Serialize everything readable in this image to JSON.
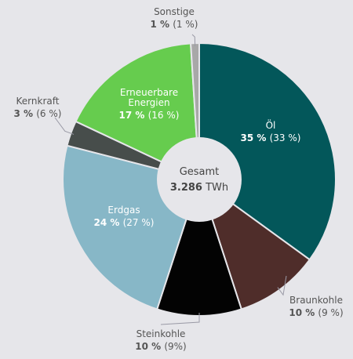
{
  "chart_data": {
    "type": "pie",
    "donut": true,
    "center_label": {
      "title": "Gesamt",
      "value": "3.286",
      "unit": "TWh"
    },
    "slices": [
      {
        "name": "Öl",
        "pct_label": "35 %",
        "prev_label": "(33 %)",
        "value": 35,
        "color": "#03575a",
        "label_color": "#ffffff"
      },
      {
        "name": "Braunkohle",
        "pct_label": "10 %",
        "prev_label": "(9 %)",
        "value": 10,
        "color": "#4f2d2a",
        "label_color": "#555555"
      },
      {
        "name": "Steinkohle",
        "pct_label": "10 %",
        "prev_label": "(9%)",
        "value": 10,
        "color": "#030303",
        "label_color": "#555555"
      },
      {
        "name": "Erdgas",
        "pct_label": "24 %",
        "prev_label": "(27 %)",
        "value": 24,
        "color": "#87b7c7",
        "label_color": "#ffffff"
      },
      {
        "name": "Kernkraft",
        "pct_label": "3 %",
        "prev_label": "(6 %)",
        "value": 3,
        "color": "#474d4b",
        "label_color": "#555555"
      },
      {
        "name": "Erneuerbare Energien",
        "pct_label": "17 %",
        "prev_label": "(16 %)",
        "value": 17,
        "color": "#66cc4e",
        "label_color": "#ffffff"
      },
      {
        "name": "Sonstige",
        "pct_label": "1 %",
        "prev_label": "(1 %)",
        "value": 1,
        "color": "#a8a8a8",
        "label_color": "#555555"
      }
    ]
  }
}
